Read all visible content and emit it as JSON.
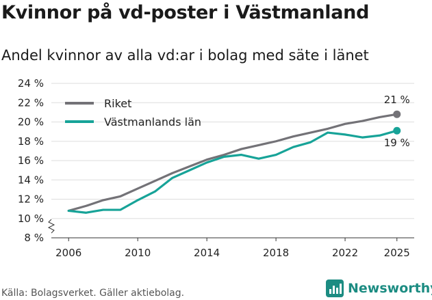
{
  "title": "Kvinnor på vd-poster i Västmanland",
  "subtitle": "Andel kvinnor av alla vd:ar i bolag med säte i länet",
  "source": "Källa: Bolagsverket. Gäller aktiebolag.",
  "brand": "Newsworthy",
  "colors": {
    "riket": "#737277",
    "lan": "#17a398",
    "brand": "#1c8c82"
  },
  "chart_data": {
    "type": "line",
    "title": "Kvinnor på vd-poster i Västmanland",
    "ylabel": "",
    "xlabel": "",
    "ylim": [
      8,
      24
    ],
    "yticks": [
      8,
      10,
      12,
      14,
      16,
      18,
      20,
      22,
      24
    ],
    "ytick_labels": [
      "8 %",
      "10 %",
      "12 %",
      "14 %",
      "16 %",
      "18 %",
      "20 %",
      "22 %",
      "24 %"
    ],
    "xlim": [
      2005,
      2026
    ],
    "xticks": [
      2006,
      2010,
      2014,
      2018,
      2022,
      2025
    ],
    "grid": true,
    "axis_break": true,
    "legend_position": "top-left",
    "x": [
      2006,
      2007,
      2008,
      2009,
      2010,
      2011,
      2012,
      2013,
      2014,
      2015,
      2016,
      2017,
      2018,
      2019,
      2020,
      2021,
      2022,
      2023,
      2024,
      2025
    ],
    "series": [
      {
        "name": "Riket",
        "color": "#737277",
        "end_label": "21 %",
        "values": [
          10.8,
          11.3,
          11.9,
          12.3,
          13.1,
          13.9,
          14.7,
          15.4,
          16.1,
          16.6,
          17.2,
          17.6,
          18.0,
          18.5,
          18.9,
          19.3,
          19.8,
          20.1,
          20.5,
          20.8
        ]
      },
      {
        "name": "Västmanlands län",
        "color": "#17a398",
        "end_label": "19 %",
        "values": [
          10.8,
          10.6,
          10.9,
          10.9,
          11.9,
          12.8,
          14.2,
          15.0,
          15.8,
          16.4,
          16.6,
          16.2,
          16.6,
          17.4,
          17.9,
          18.9,
          18.7,
          18.4,
          18.6,
          19.1
        ]
      }
    ]
  }
}
